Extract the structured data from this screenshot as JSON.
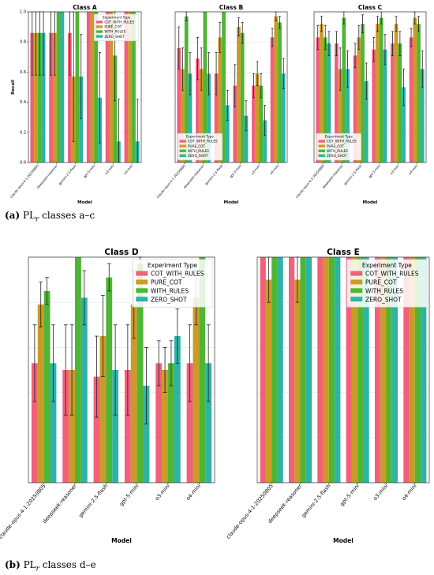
{
  "colors": {
    "COT_WITH_RULES": "#f2607a",
    "PURE_COT": "#c99b27",
    "WITH_RULES": "#4fb534",
    "ZERO_SHOT": "#2fb3a6"
  },
  "captions": {
    "a": {
      "label": "(a)",
      "pre": "PL",
      "sub": "r",
      "post": " classes a–c"
    },
    "b": {
      "label": "(b)",
      "pre": "PL",
      "sub": "r",
      "post": " classes d–e"
    }
  },
  "chart_data": [
    {
      "type": "bar",
      "title": "Class A",
      "xlabel": "Model",
      "ylabel": "Recall",
      "ylim": [
        0,
        1
      ],
      "yticks": [
        "0.0",
        "0.2",
        "0.4",
        "0.6",
        "0.8",
        "1.0"
      ],
      "categories": [
        "claude-opus-4-1-20250805",
        "deepseek-reasoner",
        "gemini-2.5-flash",
        "gpt-5-mini",
        "o3-mini",
        "o4-mini"
      ],
      "legend": {
        "title": "Experiment Type",
        "position": "top-right"
      },
      "series": [
        {
          "name": "COT_WITH_RULES",
          "values": [
            0.86,
            0.86,
            0.86,
            1.0,
            1.0,
            1.0
          ],
          "err": [
            0.28,
            0.28,
            0.28,
            0,
            0,
            0
          ]
        },
        {
          "name": "PURE_COT",
          "values": [
            0.86,
            0.86,
            0.57,
            1.0,
            1.0,
            1.0
          ],
          "err": [
            0.28,
            0.28,
            0.43,
            0,
            0,
            0
          ]
        },
        {
          "name": "WITH_RULES",
          "values": [
            0.86,
            1.0,
            1.0,
            1.0,
            0.71,
            1.0
          ],
          "err": [
            0.28,
            0,
            0,
            0,
            0.3,
            0
          ]
        },
        {
          "name": "ZERO_SHOT",
          "values": [
            0.86,
            1.0,
            0.57,
            0.43,
            0.14,
            0.14
          ],
          "err": [
            0.28,
            0,
            0.28,
            0.3,
            0.28,
            0.28
          ]
        }
      ]
    },
    {
      "type": "bar",
      "title": "Class B",
      "xlabel": "Model",
      "ylabel": "",
      "ylim": [
        0,
        1
      ],
      "yticks": [],
      "categories": [
        "claude-opus-4-1-20250805",
        "deepseek-reasoner",
        "gemini-2.5-flash",
        "gpt-5-mini",
        "o3-mini",
        "o4-mini"
      ],
      "legend": {
        "title": "Experiment Type",
        "position": "lower-left"
      },
      "series": [
        {
          "name": "COT_WITH_RULES",
          "values": [
            0.76,
            0.69,
            0.59,
            0.51,
            0.51,
            0.83
          ],
          "err": [
            0.14,
            0.14,
            0.14,
            0.14,
            0.08,
            0.06
          ]
        },
        {
          "name": "PURE_COT",
          "values": [
            0.62,
            0.62,
            0.83,
            0.9,
            0.59,
            0.97
          ],
          "err": [
            0.14,
            0.14,
            0.1,
            0.06,
            0.08,
            0.03
          ]
        },
        {
          "name": "WITH_RULES",
          "values": [
            0.97,
            1.0,
            1.0,
            0.86,
            0.51,
            0.93
          ],
          "err": [
            0.03,
            0,
            0,
            0.07,
            0.08,
            0.04
          ]
        },
        {
          "name": "ZERO_SHOT",
          "values": [
            0.59,
            0.59,
            0.38,
            0.31,
            0.28,
            0.59
          ],
          "err": [
            0.14,
            0.14,
            0.1,
            0.1,
            0.1,
            0.1
          ]
        }
      ]
    },
    {
      "type": "bar",
      "title": "Class C",
      "xlabel": "Model",
      "ylabel": "",
      "ylim": [
        0,
        1
      ],
      "yticks": [],
      "categories": [
        "claude-opus-4-1-20250805",
        "deepseek-reasoner",
        "gemini-2.5-flash",
        "gpt-5-mini",
        "o3-mini",
        "o4-mini"
      ],
      "legend": {
        "title": "Experiment Type",
        "position": "lower-left"
      },
      "series": [
        {
          "name": "COT_WITH_RULES",
          "values": [
            0.83,
            0.79,
            0.71,
            0.75,
            0.79,
            0.83
          ],
          "err": [
            0.08,
            0.08,
            0.08,
            0.08,
            0.08,
            0.06
          ]
        },
        {
          "name": "PURE_COT",
          "values": [
            0.92,
            0.62,
            0.83,
            0.92,
            0.92,
            0.96
          ],
          "err": [
            0.05,
            0.14,
            0.08,
            0.05,
            0.05,
            0.04
          ]
        },
        {
          "name": "WITH_RULES",
          "values": [
            0.83,
            0.96,
            0.92,
            0.96,
            0.79,
            0.92
          ],
          "err": [
            0.08,
            0.04,
            0.06,
            0.04,
            0.08,
            0.05
          ]
        },
        {
          "name": "ZERO_SHOT",
          "values": [
            0.79,
            0.62,
            0.54,
            0.75,
            0.5,
            0.62
          ],
          "err": [
            0.08,
            0.12,
            0.12,
            0.1,
            0.12,
            0.12
          ]
        }
      ]
    },
    {
      "type": "bar",
      "title": "Class D",
      "xlabel": "Model",
      "ylabel": "",
      "ylim": [
        0,
        1
      ],
      "yticks": [],
      "categories": [
        "claude-opus-4-1-20250805",
        "deepseek-reasoner",
        "gemini-2.5-flash",
        "gpt-5-mini",
        "o3-mini",
        "o4-mini"
      ],
      "legend": {
        "title": "Experiment Type",
        "position": "top-right"
      },
      "series": [
        {
          "name": "COT_WITH_RULES",
          "values": [
            0.53,
            0.5,
            0.47,
            0.5,
            0.53,
            0.53
          ],
          "err": [
            0.17,
            0.2,
            0.18,
            0.2,
            0.1,
            0.17
          ]
        },
        {
          "name": "PURE_COT",
          "values": [
            0.79,
            0.5,
            0.65,
            0.79,
            0.5,
            0.82
          ],
          "err": [
            0.1,
            0.2,
            0.18,
            0.15,
            0.1,
            0.12
          ]
        },
        {
          "name": "WITH_RULES",
          "values": [
            0.85,
            1.0,
            0.91,
            0.97,
            0.53,
            1.0
          ],
          "err": [
            0.06,
            0,
            0.06,
            0.03,
            0.1,
            0
          ]
        },
        {
          "name": "ZERO_SHOT",
          "values": [
            0.53,
            0.82,
            0.5,
            0.43,
            0.65,
            0.53
          ],
          "err": [
            0.17,
            0.12,
            0.2,
            0.17,
            0.12,
            0.17
          ]
        }
      ]
    },
    {
      "type": "bar",
      "title": "Class E",
      "xlabel": "Model",
      "ylabel": "",
      "ylim": [
        0,
        1
      ],
      "yticks": [],
      "categories": [
        "claude-opus-4-1-20250805",
        "deepseek-reasoner",
        "gemini-2.5-flash",
        "gpt-5-mini",
        "o3-mini",
        "o4-mini"
      ],
      "legend": {
        "title": "Experiment Type",
        "position": "top-right"
      },
      "series": [
        {
          "name": "COT_WITH_RULES",
          "values": [
            1.0,
            1.0,
            1.0,
            1.0,
            1.0,
            1.0
          ],
          "err": [
            0,
            0,
            0,
            0,
            0,
            0
          ]
        },
        {
          "name": "PURE_COT",
          "values": [
            0.9,
            0.9,
            1.0,
            1.0,
            1.0,
            1.0
          ],
          "err": [
            0.1,
            0.1,
            0,
            0,
            0,
            0
          ]
        },
        {
          "name": "WITH_RULES",
          "values": [
            1.0,
            1.0,
            1.0,
            1.0,
            1.0,
            1.0
          ],
          "err": [
            0,
            0,
            0,
            0,
            0,
            0
          ]
        },
        {
          "name": "ZERO_SHOT",
          "values": [
            1.0,
            1.0,
            1.0,
            1.0,
            1.0,
            1.0
          ],
          "err": [
            0,
            0,
            0,
            0,
            0,
            0
          ]
        }
      ]
    }
  ]
}
